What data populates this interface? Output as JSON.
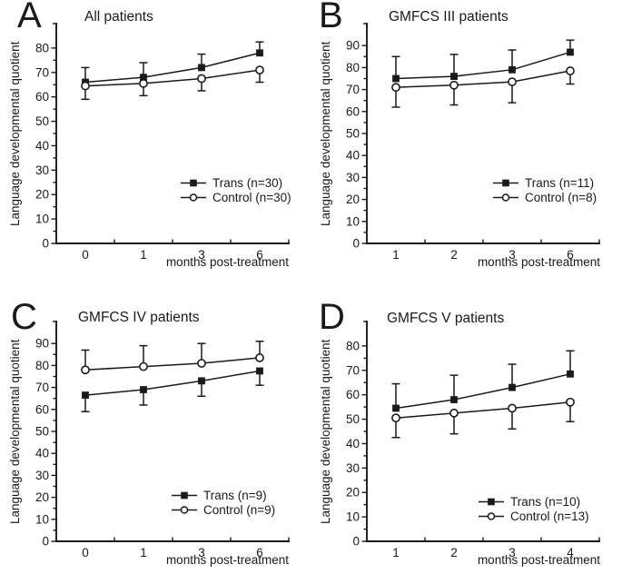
{
  "colors": {
    "line": "#1a1a1a",
    "background": "#ffffff",
    "marker_fill": "#1a1a1a",
    "open_marker_fill": "#ffffff"
  },
  "chart_data": [
    {
      "type": "line",
      "panel_label": "A",
      "title": "All patients",
      "categories": [
        "0",
        "1",
        "3",
        "6"
      ],
      "xlabel": "months post-treatment",
      "ylabel": "Language developmental quotient",
      "ylim": [
        0,
        80
      ],
      "ytick_step": 10,
      "ytick_minor_step": 5,
      "grid": false,
      "legend_position": "inside-lower-right",
      "series": [
        {
          "name": "Trans",
          "label": "Trans (n=30)",
          "marker": "filled-square",
          "error_direction": "up",
          "values": [
            66,
            68,
            72,
            78
          ],
          "errors": [
            6,
            6,
            5.5,
            4.5
          ]
        },
        {
          "name": "Control",
          "label": "Control (n=30)",
          "marker": "open-circle",
          "error_direction": "down",
          "values": [
            64.5,
            65.5,
            67.5,
            71
          ],
          "errors": [
            5.5,
            5,
            5,
            5
          ]
        }
      ]
    },
    {
      "type": "line",
      "panel_label": "B",
      "title": "GMFCS III patients",
      "categories": [
        "1",
        "2",
        "3",
        "6"
      ],
      "xlabel": "months post-treatment",
      "ylabel": "Language developmental quotient",
      "ylim": [
        0,
        90
      ],
      "ytick_step": 10,
      "ytick_minor_step": 5,
      "grid": false,
      "legend_position": "inside-lower-right",
      "series": [
        {
          "name": "Trans",
          "label": "Trans (n=11)",
          "marker": "filled-square",
          "error_direction": "up",
          "values": [
            75,
            76,
            79,
            87
          ],
          "errors": [
            10,
            10,
            9,
            5.5
          ]
        },
        {
          "name": "Control",
          "label": "Control (n=8)",
          "marker": "open-circle",
          "error_direction": "down",
          "values": [
            71,
            72,
            73.5,
            78.5
          ],
          "errors": [
            9,
            9,
            9.5,
            6
          ]
        }
      ]
    },
    {
      "type": "line",
      "panel_label": "C",
      "title": "GMFCS IV patients",
      "categories": [
        "0",
        "1",
        "3",
        "6"
      ],
      "xlabel": "months post-treatment",
      "ylabel": "Language developmental quotient",
      "ylim": [
        0,
        90
      ],
      "ytick_step": 10,
      "ytick_minor_step": 5,
      "grid": false,
      "legend_position": "inside-lower-right",
      "series": [
        {
          "name": "Trans",
          "label": "Trans (n=9)",
          "marker": "filled-square",
          "error_direction": "down",
          "values": [
            66.5,
            69,
            73,
            77.5
          ],
          "errors": [
            7.5,
            7,
            7,
            6.5
          ]
        },
        {
          "name": "Control",
          "label": "Control (n=9)",
          "marker": "open-circle",
          "error_direction": "up",
          "values": [
            78,
            79.5,
            81,
            83.5
          ],
          "errors": [
            9,
            9.5,
            9,
            7.5
          ]
        }
      ]
    },
    {
      "type": "line",
      "panel_label": "D",
      "title": "GMFCS V patients",
      "categories": [
        "1",
        "2",
        "3",
        "4"
      ],
      "xlabel": "months post-treatment",
      "ylabel": "Language developmental quotient",
      "ylim": [
        0,
        80
      ],
      "ytick_step": 10,
      "ytick_minor_step": 5,
      "grid": false,
      "legend_position": "inside-lower-right",
      "series": [
        {
          "name": "Trans",
          "label": "Trans (n=10)",
          "marker": "filled-square",
          "error_direction": "up",
          "values": [
            54.5,
            58,
            63,
            68.5
          ],
          "errors": [
            10,
            10,
            9.5,
            9.5
          ]
        },
        {
          "name": "Control",
          "label": "Control (n=13)",
          "marker": "open-circle",
          "error_direction": "down",
          "values": [
            50.5,
            52.5,
            54.5,
            57
          ],
          "errors": [
            8,
            8.5,
            8.5,
            8
          ]
        }
      ]
    }
  ]
}
